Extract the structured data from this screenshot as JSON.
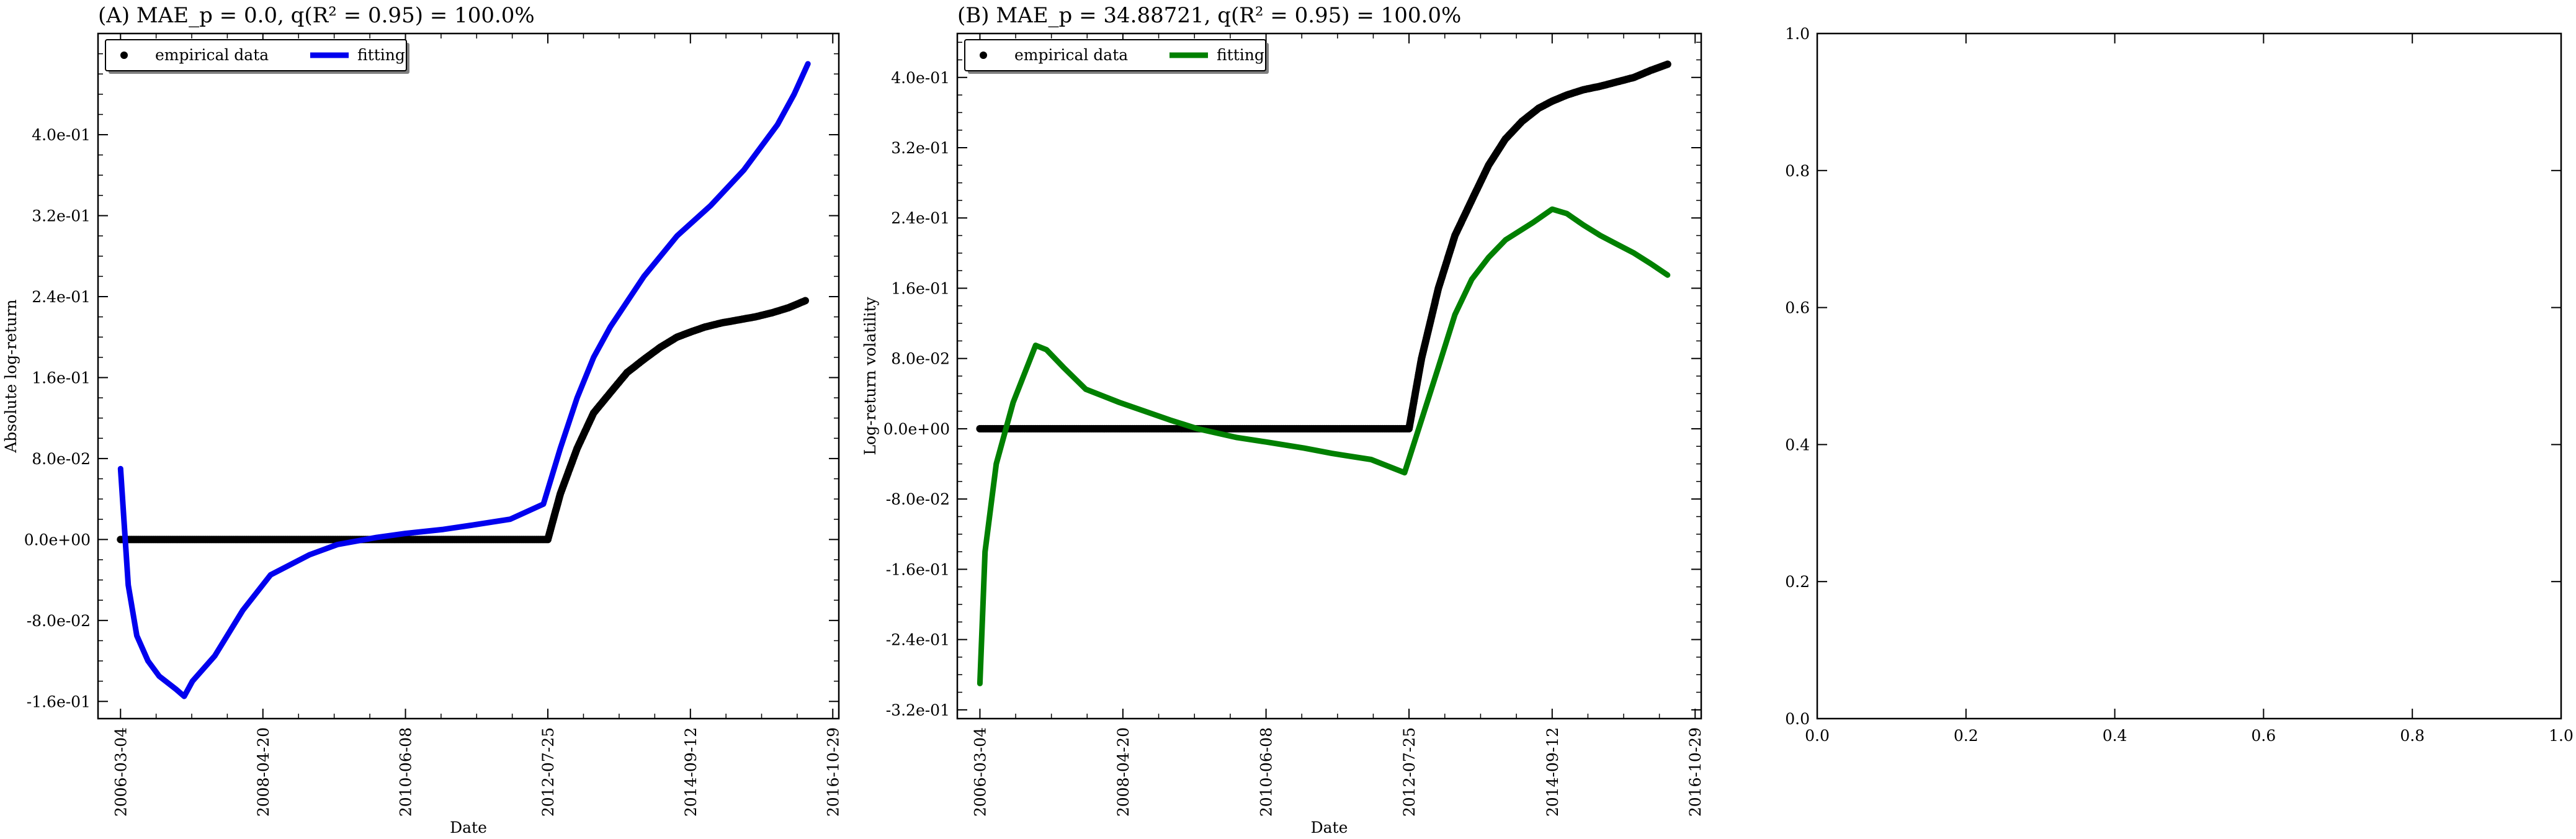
{
  "chart_data": [
    {
      "type": "line",
      "panel": "A",
      "title": "(A) MAE_p = 0.0, q(R² = 0.95) = 100.0%",
      "xlabel": "Date",
      "ylabel": "Absolute log-return",
      "x_axis": "date",
      "xlim": [
        "2005-11-01",
        "2016-12-01"
      ],
      "ylim": [
        -0.177,
        0.5
      ],
      "x_ticks": [
        "2006-03-04",
        "2008-04-20",
        "2010-06-08",
        "2012-07-25",
        "2014-09-12",
        "2016-10-29"
      ],
      "y_ticks": [
        -0.16,
        -0.08,
        0.0,
        0.08,
        0.16,
        0.24,
        0.32,
        0.4
      ],
      "y_tick_labels": [
        "-1.6e-01",
        "-8.0e-02",
        "0.0e+00",
        "8.0e-02",
        "1.6e-01",
        "2.4e-01",
        "3.2e-01",
        "4.0e-01"
      ],
      "legend": {
        "placement": "top-left",
        "entries": [
          "empirical data",
          "fitting"
        ]
      },
      "grid": false,
      "series": [
        {
          "name": "empirical data",
          "kind": "scatter",
          "color": "#000000",
          "x": [
            "2006-03-04",
            "2006-06-01",
            "2007-01-01",
            "2008-01-01",
            "2009-01-01",
            "2010-01-01",
            "2011-01-01",
            "2012-01-01",
            "2012-07-25",
            "2012-10-01",
            "2013-01-01",
            "2013-04-01",
            "2013-07-01",
            "2013-10-01",
            "2014-01-01",
            "2014-04-01",
            "2014-07-01",
            "2014-09-12",
            "2014-12-01",
            "2015-03-01",
            "2015-06-01",
            "2015-09-01",
            "2015-12-01",
            "2016-03-01",
            "2016-06-01"
          ],
          "y": [
            0.0,
            0.0,
            0.0,
            0.0,
            0.0,
            0.0,
            0.0,
            0.0,
            0.0,
            0.045,
            0.09,
            0.125,
            0.145,
            0.165,
            0.178,
            0.19,
            0.2,
            0.205,
            0.21,
            0.214,
            0.217,
            0.22,
            0.224,
            0.229,
            0.236
          ]
        },
        {
          "name": "fitting",
          "kind": "line",
          "color": "#0000ee",
          "x": [
            "2006-03-04",
            "2006-04-15",
            "2006-06-01",
            "2006-08-01",
            "2006-10-01",
            "2007-01-01",
            "2007-02-15",
            "2007-04-01",
            "2007-08-01",
            "2008-01-01",
            "2008-06-01",
            "2009-01-01",
            "2009-06-01",
            "2010-01-01",
            "2010-06-08",
            "2011-01-01",
            "2011-06-01",
            "2012-01-01",
            "2012-07-01",
            "2012-10-01",
            "2013-01-01",
            "2013-04-01",
            "2013-07-01",
            "2014-01-01",
            "2014-07-01",
            "2015-01-01",
            "2015-07-01",
            "2016-01-01",
            "2016-04-01",
            "2016-06-15"
          ],
          "y": [
            0.07,
            -0.045,
            -0.095,
            -0.12,
            -0.135,
            -0.148,
            -0.155,
            -0.14,
            -0.115,
            -0.07,
            -0.035,
            -0.015,
            -0.005,
            0.002,
            0.006,
            0.01,
            0.014,
            0.02,
            0.035,
            0.09,
            0.14,
            0.18,
            0.21,
            0.26,
            0.3,
            0.33,
            0.365,
            0.41,
            0.44,
            0.47
          ]
        }
      ]
    },
    {
      "type": "line",
      "panel": "B",
      "title": "(B) MAE_p = 34.88721, q(R² = 0.95) = 100.0%",
      "xlabel": "Date",
      "ylabel": "Log-return volatility",
      "x_axis": "date",
      "xlim": [
        "2005-11-01",
        "2016-12-01"
      ],
      "ylim": [
        -0.33,
        0.45
      ],
      "x_ticks": [
        "2006-03-04",
        "2008-04-20",
        "2010-06-08",
        "2012-07-25",
        "2014-09-12",
        "2016-10-29"
      ],
      "y_ticks": [
        -0.32,
        -0.24,
        -0.16,
        -0.08,
        0.0,
        0.08,
        0.16,
        0.24,
        0.32,
        0.4
      ],
      "y_tick_labels": [
        "-3.2e-01",
        "-2.4e-01",
        "-1.6e-01",
        "-8.0e-02",
        "0.0e+00",
        "8.0e-02",
        "1.6e-01",
        "2.4e-01",
        "3.2e-01",
        "4.0e-01"
      ],
      "legend": {
        "placement": "top-left",
        "entries": [
          "empirical data",
          "fitting"
        ]
      },
      "grid": false,
      "series": [
        {
          "name": "empirical data",
          "kind": "scatter",
          "color": "#000000",
          "x": [
            "2006-03-04",
            "2006-06-01",
            "2007-01-01",
            "2008-01-01",
            "2009-01-01",
            "2010-01-01",
            "2011-01-01",
            "2012-01-01",
            "2012-07-25",
            "2012-10-01",
            "2013-01-01",
            "2013-04-01",
            "2013-07-01",
            "2013-10-01",
            "2014-01-01",
            "2014-04-01",
            "2014-07-01",
            "2014-09-12",
            "2014-12-01",
            "2015-03-01",
            "2015-06-01",
            "2015-09-01",
            "2015-12-01",
            "2016-03-01",
            "2016-06-01"
          ],
          "y": [
            0.0,
            0.0,
            0.0,
            0.0,
            0.0,
            0.0,
            0.0,
            0.0,
            0.0,
            0.08,
            0.16,
            0.22,
            0.26,
            0.3,
            0.33,
            0.35,
            0.365,
            0.373,
            0.38,
            0.386,
            0.39,
            0.395,
            0.4,
            0.408,
            0.415
          ]
        },
        {
          "name": "fitting",
          "kind": "line",
          "color": "#008000",
          "x": [
            "2006-03-04",
            "2006-04-01",
            "2006-06-01",
            "2006-09-01",
            "2007-01-01",
            "2007-03-01",
            "2007-06-01",
            "2007-10-01",
            "2008-04-01",
            "2009-01-01",
            "2009-06-01",
            "2010-01-01",
            "2010-06-08",
            "2011-01-01",
            "2011-06-01",
            "2012-01-01",
            "2012-07-01",
            "2012-10-01",
            "2013-01-01",
            "2013-04-01",
            "2013-07-01",
            "2013-10-01",
            "2014-01-01",
            "2014-06-01",
            "2014-09-12",
            "2014-12-01",
            "2015-03-01",
            "2015-06-01",
            "2015-09-01",
            "2015-12-01",
            "2016-03-01",
            "2016-06-01"
          ],
          "y": [
            -0.29,
            -0.14,
            -0.04,
            0.03,
            0.095,
            0.09,
            0.07,
            0.045,
            0.03,
            0.01,
            0.0,
            -0.01,
            -0.015,
            -0.022,
            -0.028,
            -0.035,
            -0.05,
            0.01,
            0.07,
            0.13,
            0.17,
            0.195,
            0.215,
            0.235,
            0.25,
            0.245,
            0.232,
            0.22,
            0.21,
            0.2,
            0.188,
            0.175
          ]
        }
      ]
    },
    {
      "type": "line",
      "panel": "C",
      "title": "",
      "xlabel": "",
      "ylabel": "",
      "xlim": [
        0.0,
        1.0
      ],
      "ylim": [
        0.0,
        1.0
      ],
      "x_ticks": [
        0.0,
        0.2,
        0.4,
        0.6,
        0.8,
        1.0
      ],
      "x_tick_labels": [
        "0.0",
        "0.2",
        "0.4",
        "0.6",
        "0.8",
        "1.0"
      ],
      "y_ticks": [
        0.0,
        0.2,
        0.4,
        0.6,
        0.8,
        1.0
      ],
      "y_tick_labels": [
        "0.0",
        "0.2",
        "0.4",
        "0.6",
        "0.8",
        "1.0"
      ],
      "grid": false,
      "series": []
    }
  ]
}
